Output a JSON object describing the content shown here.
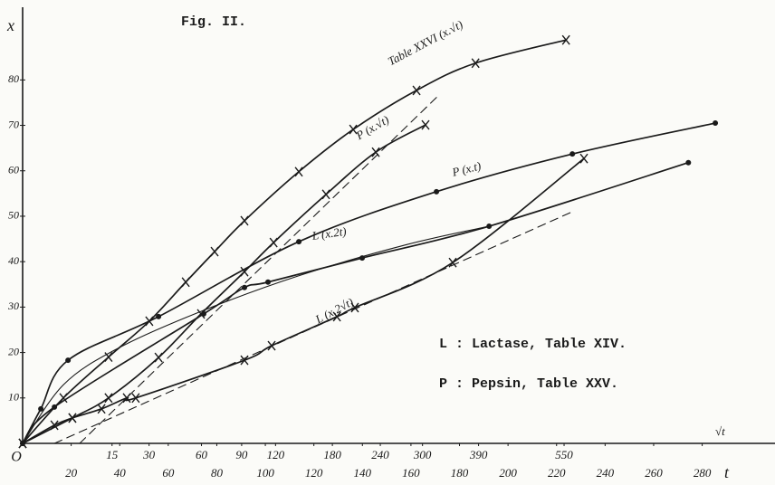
{
  "chart_data": {
    "type": "line",
    "title": "Fig.  II.",
    "ylabel": "x",
    "xlabel": "t",
    "x2label": "√t",
    "xlim": [
      0,
      310
    ],
    "ylim": [
      0,
      96
    ],
    "x2lim": [
      0,
      1062
    ],
    "x2scale": "sqrt",
    "xticks": [
      {
        "value": 0,
        "label": "O"
      },
      20,
      40,
      60,
      80,
      100,
      120,
      140,
      160,
      180,
      200,
      220,
      240,
      260,
      280
    ],
    "x2ticks": [
      15,
      30,
      60,
      90,
      120,
      180,
      240,
      300,
      390,
      550
    ],
    "yticks": [
      10,
      20,
      30,
      40,
      50,
      60,
      70,
      80
    ],
    "color": "#1a1a1a",
    "annotations": [
      "L : Lactase, Table XIV.",
      "P : Pepsin, Table XXV."
    ],
    "series": [
      {
        "name": "Table XXVI (x.√t)",
        "marker": "x",
        "x": [
          0,
          16.8,
          35.4,
          52.2,
          67.2,
          79.1,
          91.4,
          113.8,
          136.2,
          162.3,
          186.6,
          223.9
        ],
        "values": [
          0,
          10.0,
          19.0,
          26.9,
          35.5,
          42.2,
          49.0,
          59.8,
          69.1,
          77.7,
          83.7,
          88.8
        ]
      },
      {
        "name": "P (x.√t)",
        "marker": "x",
        "x": [
          0,
          20.5,
          35.4,
          56.0,
          73.5,
          91.4,
          103.4,
          125.0,
          145.5,
          166.0
        ],
        "values": [
          0,
          5.6,
          10.0,
          18.9,
          28.5,
          37.8,
          44.2,
          54.8,
          64.1,
          70.1
        ]
      },
      {
        "name": "P (x.t)",
        "marker": "dot",
        "x": [
          0,
          7.5,
          18.7,
          56.0,
          113.8,
          170.5,
          226.5,
          285.4
        ],
        "values": [
          0,
          7.6,
          18.3,
          27.9,
          44.4,
          55.4,
          63.7,
          70.5
        ]
      },
      {
        "name": "L (x.2t)",
        "marker": "dot",
        "x": [
          0,
          13.1,
          74.6,
          91.4,
          101.1,
          139.9,
          192.2,
          274.3
        ],
        "values": [
          0,
          8.0,
          28.5,
          34.3,
          35.5,
          40.8,
          47.8,
          61.8
        ]
      },
      {
        "name": "L (x.2√t)",
        "marker": "x",
        "x": [
          0,
          13.1,
          20.5,
          32.5,
          42.9,
          46.6,
          91.4,
          102.6,
          129.5,
          136.9,
          177.2,
          231.3
        ],
        "values": [
          0,
          4.0,
          5.6,
          7.6,
          10.0,
          10.0,
          18.3,
          21.5,
          27.9,
          29.9,
          39.8,
          62.7
        ]
      },
      {
        "x": [
          0,
          16.8,
          39.2,
          72.8,
          113.8,
          158.6,
          192.2
        ],
        "values": [
          0,
          12.9,
          20.9,
          28.9,
          36.9,
          43.8,
          47.8
        ]
      },
      {
        "dash": true,
        "x": [
          23.5,
          171.6
        ],
        "values": [
          0,
          76.7
        ]
      },
      {
        "dash": true,
        "x": [
          13.1,
          225.7
        ],
        "values": [
          0,
          50.8
        ]
      }
    ]
  }
}
